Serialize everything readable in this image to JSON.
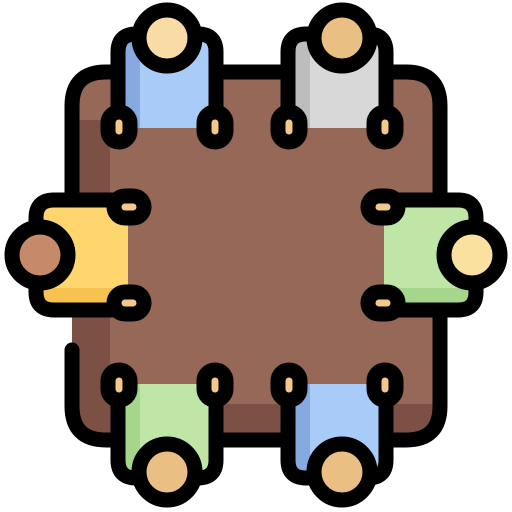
{
  "icon": {
    "name": "meeting-table-icon",
    "description_colors": {
      "outline": "#000000",
      "table": "#966857",
      "table_shadow": "#7d5046",
      "hand": "#f3c98b",
      "head_light": "#f9dba6",
      "head_tan": "#eabf84",
      "head_dark": "#c68a6a",
      "head_yellow": "#fbe1a0"
    },
    "people": [
      {
        "seat": "top-left",
        "shirt": "#a8cbf7",
        "shirt_shade": "#86a9e0",
        "head": "#f9dba6"
      },
      {
        "seat": "top-right",
        "shirt": "#d8d8d8",
        "shirt_shade": "#bdbdbd",
        "head": "#eabf84"
      },
      {
        "seat": "left",
        "shirt": "#ffd66e",
        "shirt_shade": "#f7c24f",
        "head": "#c68a6a"
      },
      {
        "seat": "right",
        "shirt": "#bfe6a6",
        "shirt_shade": "#a6d68c",
        "head": "#fbe1a0"
      },
      {
        "seat": "bottom-left",
        "shirt": "#bfe6a6",
        "shirt_shade": "#a6d68c",
        "head": "#eabf84"
      },
      {
        "seat": "bottom-right",
        "shirt": "#a8cbf7",
        "shirt_shade": "#86a9e0",
        "head": "#eabf84"
      }
    ]
  }
}
